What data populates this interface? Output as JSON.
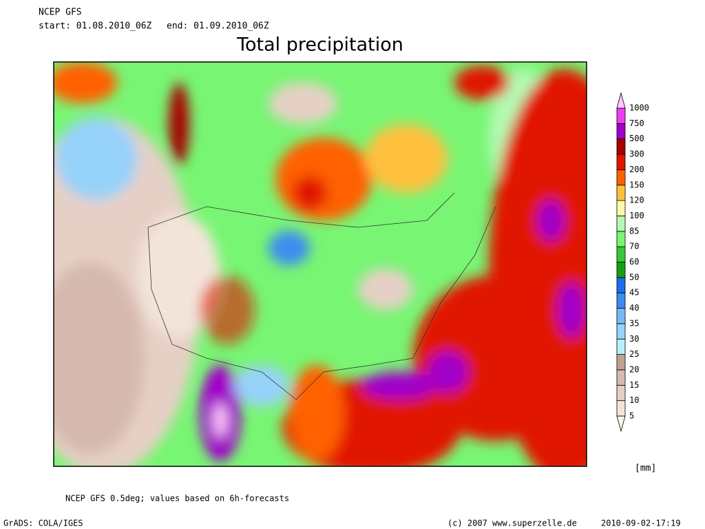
{
  "header": {
    "model": "NCEP GFS",
    "start": "start: 01.08.2010_06Z",
    "end": "end: 01.09.2010_06Z",
    "title": "Total precipitation"
  },
  "legend": {
    "levels": [
      5,
      10,
      15,
      20,
      25,
      30,
      35,
      40,
      45,
      50,
      60,
      70,
      85,
      100,
      120,
      150,
      200,
      300,
      500,
      750,
      1000
    ],
    "colors": [
      "#fdf5ec",
      "#f3e4da",
      "#e6d0c6",
      "#d6b9ae",
      "#c2a094",
      "#b4f0fa",
      "#96d2fa",
      "#78b9f5",
      "#3c8cf0",
      "#1e6eeb",
      "#14a014",
      "#37c837",
      "#78f573",
      "#b4fab4",
      "#fffaaa",
      "#ffc03c",
      "#ff6000",
      "#e11400",
      "#a50000",
      "#a000c8",
      "#f03cf0",
      "#ffc8ff"
    ],
    "unit": "[mm]"
  },
  "footer": {
    "note": "NCEP GFS 0.5deg; values based on 6h-forecasts",
    "software": "GrADS: COLA/IGES",
    "copyright": "(c) 2007 www.superzelle.de",
    "timestamp": "2010-09-02-17:19"
  }
}
